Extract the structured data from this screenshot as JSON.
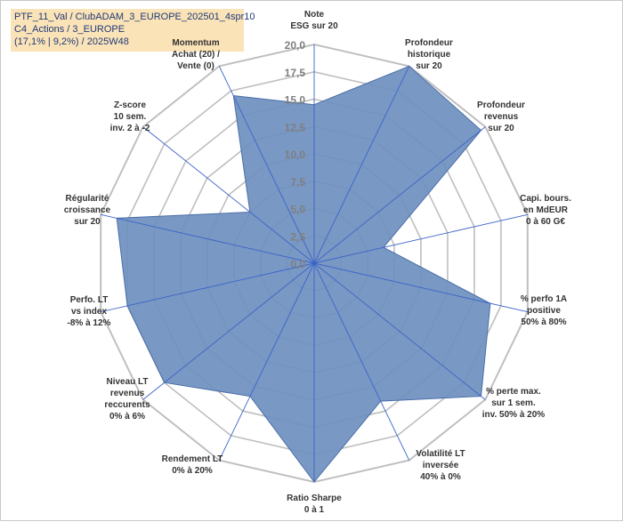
{
  "chart_data": {
    "type": "radar",
    "title_lines": [
      "PTF_11_Val / ClubADAM_3_EUROPE_202501_4spr10",
      "C4_Actions / 3_EUROPE",
      "(17,1% | 9,2%) / 2025W48"
    ],
    "rlim": [
      0,
      20
    ],
    "ticks": [
      "0,0",
      "2,5",
      "5,0",
      "7,5",
      "10,0",
      "12,5",
      "15,0",
      "17,5",
      "20,0"
    ],
    "tick_values": [
      0,
      2.5,
      5,
      7.5,
      10,
      12.5,
      15,
      17.5,
      20
    ],
    "axes": [
      {
        "label": [
          "Note",
          "ESG sur 20"
        ],
        "value": 14.5
      },
      {
        "label": [
          "Profondeur",
          "historique",
          "sur 20"
        ],
        "value": 20
      },
      {
        "label": [
          "Profondeur",
          "revenus",
          "sur 20"
        ],
        "value": 19.5
      },
      {
        "label": [
          "Capi. bours.",
          "en MdEUR",
          "0 à 60 G€"
        ],
        "value": 6.5
      },
      {
        "label": [
          "% perfo 1A",
          "positive",
          "50% à 80%"
        ],
        "value": 16.5
      },
      {
        "label": [
          "% perte max.",
          "sur 1 sem.",
          "inv. 50% à 20%"
        ],
        "value": 19.5
      },
      {
        "label": [
          "Volatilité LT",
          "inversée",
          "40% à 0%"
        ],
        "value": 14
      },
      {
        "label": [
          "Ratio Sharpe",
          "0 à 1"
        ],
        "value": 20
      },
      {
        "label": [
          "Rendement LT",
          "0% à 20%"
        ],
        "value": 13.5
      },
      {
        "label": [
          "Niveau LT",
          "revenus",
          "reccurents",
          "0% à 6%"
        ],
        "value": 17.5
      },
      {
        "label": [
          "Perfo. LT",
          "vs index",
          "-8% à 12%"
        ],
        "value": 17.5
      },
      {
        "label": [
          "Régularité",
          "croissance",
          "sur 20"
        ],
        "value": 18.5
      },
      {
        "label": [
          "Z-score",
          "10 sem.",
          "inv. 2 à -2"
        ],
        "value": 7.5
      },
      {
        "label": [
          "Momentum",
          "Achat (20) /",
          "Vente (0)"
        ],
        "value": 17
      }
    ],
    "colors": {
      "fill": "#6e8fbf",
      "stroke": "#4a6fa8",
      "grid": "#bfbfbf",
      "spoke": "#3c64c8",
      "momentum_title": "#b8a15a"
    }
  }
}
